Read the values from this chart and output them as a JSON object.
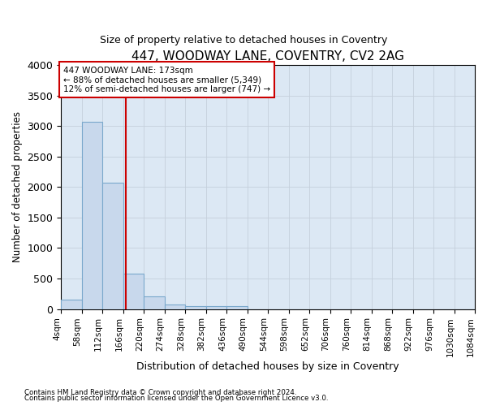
{
  "title": "447, WOODWAY LANE, COVENTRY, CV2 2AG",
  "subtitle": "Size of property relative to detached houses in Coventry",
  "xlabel": "Distribution of detached houses by size in Coventry",
  "ylabel": "Number of detached properties",
  "annotation_line1": "447 WOODWAY LANE: 173sqm",
  "annotation_line2": "← 88% of detached houses are smaller (5,349)",
  "annotation_line3": "12% of semi-detached houses are larger (747) →",
  "bar_edges": [
    4,
    58,
    112,
    166,
    220,
    274,
    328,
    382,
    436,
    490,
    544,
    598,
    652,
    706,
    760,
    814,
    868,
    922,
    976,
    1030,
    1084
  ],
  "bar_heights": [
    150,
    3075,
    2075,
    575,
    210,
    75,
    50,
    50,
    50,
    0,
    0,
    0,
    0,
    0,
    0,
    0,
    0,
    0,
    0,
    0
  ],
  "bar_color": "#c8d8ec",
  "bar_edge_color": "#7aa8cc",
  "vline_color": "#cc0000",
  "vline_x": 173,
  "ylim": [
    0,
    4000
  ],
  "xlim": [
    4,
    1084
  ],
  "grid_color": "#c5d0dc",
  "bg_color": "#ffffff",
  "plot_bg_color": "#dce8f4",
  "yticks": [
    0,
    500,
    1000,
    1500,
    2000,
    2500,
    3000,
    3500,
    4000
  ],
  "footnote1": "Contains HM Land Registry data © Crown copyright and database right 2024.",
  "footnote2": "Contains public sector information licensed under the Open Government Licence v3.0."
}
